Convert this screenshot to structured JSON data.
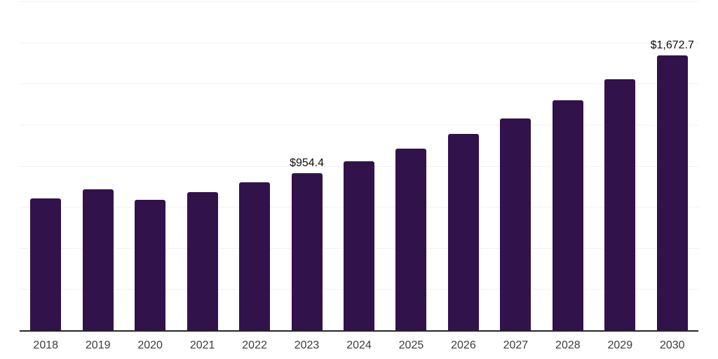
{
  "chart_data": {
    "type": "bar",
    "title": "",
    "xlabel": "",
    "ylabel": "",
    "categories": [
      "2018",
      "2019",
      "2020",
      "2021",
      "2022",
      "2023",
      "2024",
      "2025",
      "2026",
      "2027",
      "2028",
      "2029",
      "2030"
    ],
    "values": [
      800,
      858,
      792,
      838,
      900,
      954.4,
      1028,
      1103,
      1192,
      1288,
      1398,
      1525,
      1672.7
    ],
    "data_labels": [
      {
        "category": "2023",
        "text": "$954.4"
      },
      {
        "category": "2030",
        "text": "$1,672.7"
      }
    ],
    "ylim": [
      0,
      2000
    ],
    "gridline_step": 250,
    "grid": "horizontal",
    "y_tick_labels_visible": false,
    "legend": false,
    "colors": {
      "bar": "#31124b",
      "gridline": "#f2f2f2",
      "axis_line": "#262626",
      "tick_label": "#3c3c3c",
      "data_label": "#0d0d0d",
      "background": "#ffffff"
    }
  }
}
